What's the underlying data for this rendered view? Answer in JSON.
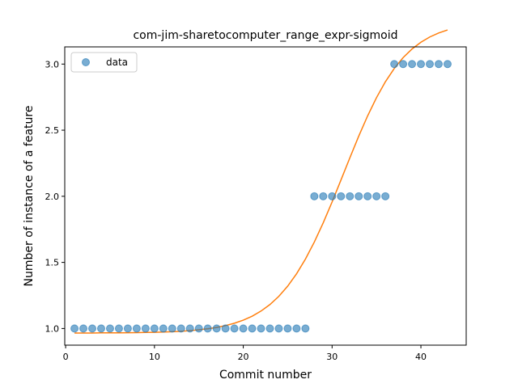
{
  "chart_data": {
    "type": "scatter",
    "title": "com-jim-sharetocomputer_range_expr-sigmoid",
    "xlabel": "Commit number",
    "ylabel": "Number of instance of a feature",
    "xlim": [
      -0.1,
      45.1
    ],
    "ylim": [
      0.874,
      3.13
    ],
    "x_ticks": [
      0,
      10,
      20,
      30,
      40
    ],
    "x_tick_labels": [
      "0",
      "10",
      "20",
      "30",
      "40"
    ],
    "y_ticks": [
      1.0,
      1.5,
      2.0,
      2.5,
      3.0
    ],
    "y_tick_labels": [
      "1.0",
      "1.5",
      "2.0",
      "2.5",
      "3.0"
    ],
    "grid": false,
    "legend": {
      "position": "top-left",
      "entries": [
        "data"
      ]
    },
    "colors": {
      "points": "#1f77b4",
      "fit": "#ff7f0e"
    },
    "series": [
      {
        "name": "data",
        "kind": "points",
        "x": [
          1,
          2,
          3,
          4,
          5,
          6,
          7,
          8,
          9,
          10,
          11,
          12,
          13,
          14,
          15,
          16,
          17,
          18,
          19,
          20,
          21,
          22,
          23,
          24,
          25,
          26,
          27,
          28,
          29,
          30,
          31,
          32,
          33,
          34,
          35,
          36,
          37,
          38,
          39,
          40,
          41,
          42,
          43
        ],
        "y": [
          1,
          1,
          1,
          1,
          1,
          1,
          1,
          1,
          1,
          1,
          1,
          1,
          1,
          1,
          1,
          1,
          1,
          1,
          1,
          1,
          1,
          1,
          1,
          1,
          1,
          1,
          1,
          2,
          2,
          2,
          2,
          2,
          2,
          2,
          2,
          2,
          3,
          3,
          3,
          3,
          3,
          3,
          3
        ]
      },
      {
        "kind": "line",
        "x": [
          1,
          2,
          3,
          4,
          5,
          6,
          7,
          8,
          9,
          10,
          11,
          12,
          13,
          14,
          15,
          16,
          17,
          18,
          19,
          20,
          21,
          22,
          23,
          24,
          25,
          26,
          27,
          28,
          29,
          30,
          31,
          32,
          33,
          34,
          35,
          36,
          37,
          38,
          39,
          40,
          41,
          42,
          43
        ],
        "y": [
          0.966,
          0.966,
          0.966,
          0.967,
          0.967,
          0.967,
          0.968,
          0.969,
          0.97,
          0.971,
          0.973,
          0.976,
          0.979,
          0.984,
          0.99,
          0.998,
          1.008,
          1.022,
          1.04,
          1.063,
          1.093,
          1.132,
          1.181,
          1.243,
          1.32,
          1.414,
          1.525,
          1.654,
          1.799,
          1.957,
          2.123,
          2.291,
          2.455,
          2.608,
          2.746,
          2.866,
          2.967,
          3.049,
          3.114,
          3.165,
          3.205,
          3.235,
          3.258
        ]
      }
    ]
  }
}
